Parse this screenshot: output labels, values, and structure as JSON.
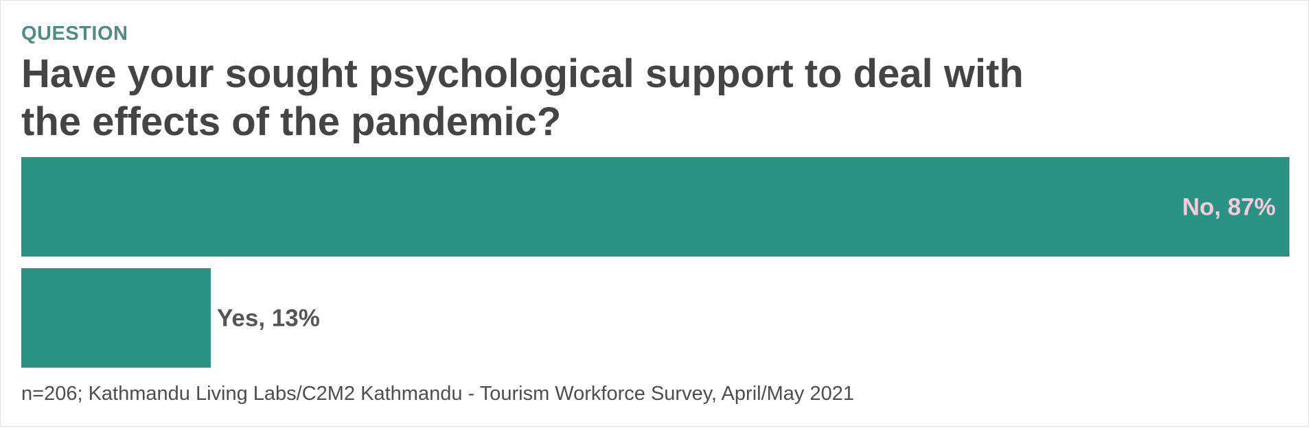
{
  "kicker": {
    "text": "QUESTION",
    "color": "#4e8c85"
  },
  "title": "Have your sought psychological support to deal with the effects of the pandemic?",
  "source": "n=206; Kathmandu Living Labs/C2M2 Kathmandu - Tourism Workforce Survey, April/May 2021",
  "colors": {
    "bar": "#2a9384",
    "inside_label": "#f8cadb",
    "outside_label": "#555555"
  },
  "chart_data": {
    "type": "bar",
    "orientation": "horizontal",
    "categories": [
      "No",
      "Yes"
    ],
    "values": [
      87,
      13
    ],
    "unit": "%",
    "labels": [
      "No, 87%",
      "Yes, 13%"
    ],
    "xlim": [
      0,
      87
    ],
    "grid": false,
    "legend": "none"
  }
}
